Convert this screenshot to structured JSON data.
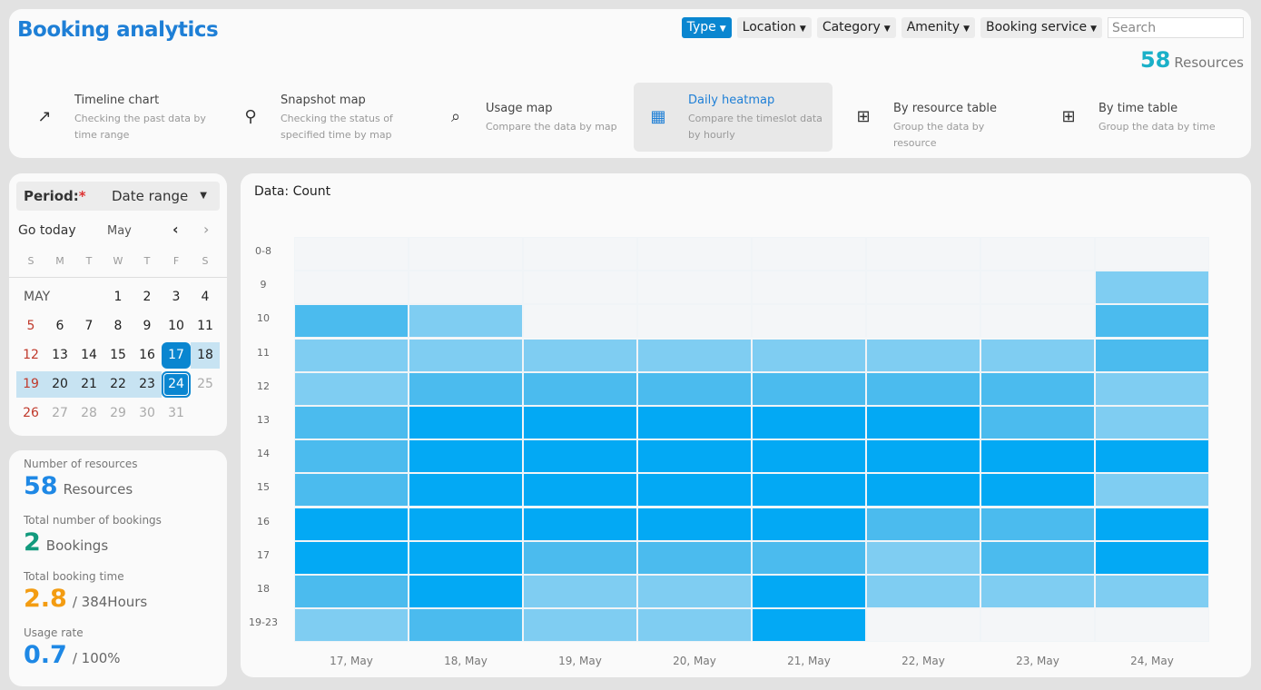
{
  "header": {
    "title": "Booking analytics",
    "filters": [
      "Type",
      "Location",
      "Category",
      "Amenity",
      "Booking service"
    ],
    "active_filter": 0,
    "search_placeholder": "Search",
    "resource_count": "58",
    "resource_label": "Resources"
  },
  "tabs": [
    {
      "icon": "trending-up-icon",
      "glyph": "↗",
      "title": "Timeline chart",
      "desc": "Checking the past data by time range"
    },
    {
      "icon": "map-pin-icon",
      "glyph": "⚲",
      "title": "Snapshot map",
      "desc": "Checking the status of specified time by map"
    },
    {
      "icon": "map-search-icon",
      "glyph": "⌕",
      "title": "Usage map",
      "desc": "Compare the data by map"
    },
    {
      "icon": "grid-icon",
      "glyph": "▦",
      "title": "Daily heatmap",
      "desc": "Compare the timeslot data by hourly",
      "active": true
    },
    {
      "icon": "table-icon",
      "glyph": "⊞",
      "title": "By resource table",
      "desc": "Group the data by resource"
    },
    {
      "icon": "table-icon",
      "glyph": "⊞",
      "title": "By time table",
      "desc": "Group the data by time"
    }
  ],
  "calendar": {
    "period_label": "Period:",
    "required_mark": "*",
    "period_value": "Date range",
    "go_today": "Go today",
    "month": "May",
    "prev": "‹",
    "next": "›",
    "weekdays": [
      "S",
      "M",
      "T",
      "W",
      "T",
      "F",
      "S"
    ],
    "month_label": "MAY",
    "weeks": [
      [
        null,
        null,
        null,
        "1",
        "2",
        "3",
        "4"
      ],
      [
        "5",
        "6",
        "7",
        "8",
        "9",
        "10",
        "11"
      ],
      [
        "12",
        "13",
        "14",
        "15",
        "16",
        "17",
        "18"
      ],
      [
        "19",
        "20",
        "21",
        "22",
        "23",
        "24",
        "25"
      ],
      [
        "26",
        "27",
        "28",
        "29",
        "30",
        "31",
        null
      ]
    ],
    "range_start": "17",
    "range_end": "24",
    "muted_from": 25
  },
  "stats": [
    {
      "label": "Number of resources",
      "value": "58",
      "unit": "Resources",
      "color": "#1e88e5"
    },
    {
      "label": "Total number of bookings",
      "value": "2",
      "unit": "Bookings",
      "color": "#129a7d"
    },
    {
      "label": "Total booking time",
      "value": "2.8",
      "unit": "/ 384Hours",
      "color": "#f39c12"
    },
    {
      "label": "Usage rate",
      "value": "0.7",
      "unit": "/ 100%",
      "color": "#1e88e5"
    }
  ],
  "chart_data": {
    "type": "heatmap",
    "title": "Data: Count",
    "x": [
      "17, May",
      "18, May",
      "19, May",
      "20, May",
      "21, May",
      "22, May",
      "23, May",
      "24, May"
    ],
    "y": [
      "0-8",
      "9",
      "10",
      "11",
      "12",
      "13",
      "14",
      "15",
      "16",
      "17",
      "18",
      "19-23"
    ],
    "values": [
      [
        0,
        0,
        0,
        0,
        0,
        0,
        0,
        0
      ],
      [
        0,
        0,
        0,
        0,
        0,
        0,
        0,
        1
      ],
      [
        2,
        1,
        0,
        0,
        0,
        0,
        0,
        2
      ],
      [
        1,
        1,
        1,
        1,
        1,
        1,
        1,
        2
      ],
      [
        1,
        2,
        2,
        2,
        2,
        2,
        2,
        1
      ],
      [
        2,
        3,
        3,
        3,
        3,
        3,
        2,
        1
      ],
      [
        2,
        3,
        3,
        3,
        3,
        3,
        3,
        3
      ],
      [
        2,
        3,
        3,
        3,
        3,
        3,
        3,
        1
      ],
      [
        3,
        3,
        3,
        3,
        3,
        2,
        2,
        3
      ],
      [
        3,
        3,
        2,
        2,
        2,
        1,
        2,
        3
      ],
      [
        2,
        3,
        1,
        1,
        3,
        1,
        1,
        1
      ],
      [
        1,
        2,
        1,
        1,
        3,
        0,
        0,
        0
      ]
    ],
    "colors": [
      "#f4f6f8",
      "#7fcdf2",
      "#4bbbee",
      "#03a9f4"
    ]
  }
}
